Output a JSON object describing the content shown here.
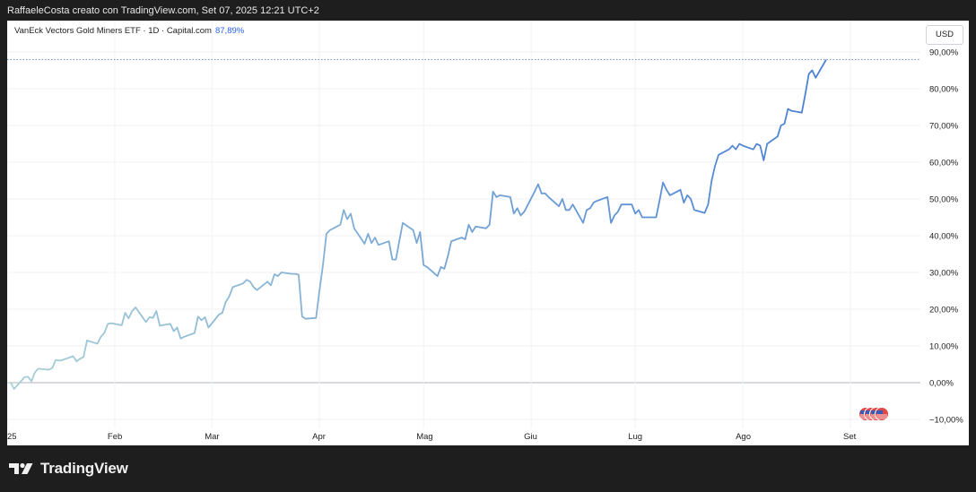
{
  "header": {
    "attribution": "RaffaeleCosta creato con TradingView.com, Set 07, 2025 12:21 UTC+2"
  },
  "legend": {
    "symbol": "VanEck Vectors Gold Miners ETF · 1D · Capital.com",
    "value": "87,89%"
  },
  "currency_button": "USD",
  "brand": {
    "name": "TradingView",
    "icon": "tradingview-logo-icon"
  },
  "colors": {
    "line_start": "#a8cfd6",
    "line_end": "#4a80d4",
    "zero_line": "#b0b3ba",
    "grid": "#f0f2f5"
  },
  "chart_data": {
    "type": "line",
    "title": "",
    "xlabel": "",
    "ylabel": "",
    "y_unit": "percent change",
    "ylim": [
      -10,
      92
    ],
    "grid": true,
    "y_ticks": [
      "90,00%",
      "80,00%",
      "70,00%",
      "60,00%",
      "50,00%",
      "40,00%",
      "30,00%",
      "20,00%",
      "10,00%",
      "0,00%",
      "−10,00%"
    ],
    "y_tick_values": [
      90,
      80,
      70,
      60,
      50,
      40,
      30,
      20,
      10,
      0,
      -10
    ],
    "x_ticks": [
      "25",
      "Feb",
      "Mar",
      "Apr",
      "Mag",
      "Giu",
      "Lug",
      "Ago",
      "Set"
    ],
    "x_tick_dates": [
      "2025-01-01",
      "2025-02-01",
      "2025-03-01",
      "2025-04-01",
      "2025-05-01",
      "2025-06-01",
      "2025-07-01",
      "2025-08-01",
      "2025-09-01"
    ],
    "last_value": 87.89,
    "series": [
      {
        "values": [
          [
            "2025-01-02",
            0.0
          ],
          [
            "2025-01-03",
            -1.7
          ],
          [
            "2025-01-06",
            1.5
          ],
          [
            "2025-01-07",
            1.6
          ],
          [
            "2025-01-08",
            0.4
          ],
          [
            "2025-01-09",
            2.8
          ],
          [
            "2025-01-10",
            3.8
          ],
          [
            "2025-01-13",
            3.5
          ],
          [
            "2025-01-14",
            4.0
          ],
          [
            "2025-01-15",
            6.2
          ],
          [
            "2025-01-16",
            6.0
          ],
          [
            "2025-01-17",
            6.2
          ],
          [
            "2025-01-20",
            7.2
          ],
          [
            "2025-01-21",
            5.8
          ],
          [
            "2025-01-22",
            6.5
          ],
          [
            "2025-01-23",
            7.0
          ],
          [
            "2025-01-24",
            11.5
          ],
          [
            "2025-01-27",
            10.6
          ],
          [
            "2025-01-28",
            12.5
          ],
          [
            "2025-01-29",
            13.5
          ],
          [
            "2025-01-30",
            16.0
          ],
          [
            "2025-01-31",
            16.2
          ],
          [
            "2025-02-03",
            15.6
          ],
          [
            "2025-02-04",
            19.0
          ],
          [
            "2025-02-05",
            17.5
          ],
          [
            "2025-02-06",
            19.5
          ],
          [
            "2025-02-07",
            20.5
          ],
          [
            "2025-02-10",
            16.5
          ],
          [
            "2025-02-11",
            17.8
          ],
          [
            "2025-02-12",
            17.6
          ],
          [
            "2025-02-13",
            19.5
          ],
          [
            "2025-02-14",
            15.5
          ],
          [
            "2025-02-17",
            16.0
          ],
          [
            "2025-02-18",
            14.0
          ],
          [
            "2025-02-19",
            15.0
          ],
          [
            "2025-02-20",
            12.0
          ],
          [
            "2025-02-21",
            12.5
          ],
          [
            "2025-02-24",
            13.5
          ],
          [
            "2025-02-25",
            18.0
          ],
          [
            "2025-02-26",
            17.0
          ],
          [
            "2025-02-27",
            17.8
          ],
          [
            "2025-02-28",
            15.0
          ],
          [
            "2025-03-03",
            18.5
          ],
          [
            "2025-03-04",
            19.0
          ],
          [
            "2025-03-05",
            22.0
          ],
          [
            "2025-03-06",
            23.5
          ],
          [
            "2025-03-07",
            26.0
          ],
          [
            "2025-03-10",
            27.0
          ],
          [
            "2025-03-11",
            28.0
          ],
          [
            "2025-03-12",
            27.5
          ],
          [
            "2025-03-13",
            26.0
          ],
          [
            "2025-03-14",
            25.2
          ],
          [
            "2025-03-17",
            27.5
          ],
          [
            "2025-03-18",
            26.5
          ],
          [
            "2025-03-19",
            29.5
          ],
          [
            "2025-03-20",
            29.0
          ],
          [
            "2025-03-21",
            30.0
          ],
          [
            "2025-03-24",
            29.6
          ],
          [
            "2025-03-25",
            29.6
          ],
          [
            "2025-03-26",
            29.4
          ],
          [
            "2025-03-27",
            18.0
          ],
          [
            "2025-03-28",
            17.4
          ],
          [
            "2025-03-31",
            17.6
          ],
          [
            "2025-04-01",
            25.0
          ],
          [
            "2025-04-02",
            32.0
          ],
          [
            "2025-04-03",
            40.5
          ],
          [
            "2025-04-04",
            41.5
          ],
          [
            "2025-04-07",
            43.0
          ],
          [
            "2025-04-08",
            47.0
          ],
          [
            "2025-04-09",
            44.5
          ],
          [
            "2025-04-10",
            46.0
          ],
          [
            "2025-04-11",
            42.0
          ],
          [
            "2025-04-14",
            37.8
          ],
          [
            "2025-04-15",
            40.5
          ],
          [
            "2025-04-16",
            38.0
          ],
          [
            "2025-04-17",
            39.5
          ],
          [
            "2025-04-18",
            37.5
          ],
          [
            "2025-04-21",
            38.5
          ],
          [
            "2025-04-22",
            33.5
          ],
          [
            "2025-04-23",
            33.5
          ],
          [
            "2025-04-24",
            38.5
          ],
          [
            "2025-04-25",
            43.5
          ],
          [
            "2025-04-28",
            41.5
          ],
          [
            "2025-04-29",
            38.0
          ],
          [
            "2025-04-30",
            41.0
          ],
          [
            "2025-05-01",
            32.0
          ],
          [
            "2025-05-02",
            31.5
          ],
          [
            "2025-05-05",
            29.0
          ],
          [
            "2025-05-06",
            31.5
          ],
          [
            "2025-05-07",
            31.0
          ],
          [
            "2025-05-08",
            34.5
          ],
          [
            "2025-05-09",
            38.5
          ],
          [
            "2025-05-12",
            39.5
          ],
          [
            "2025-05-13",
            39.0
          ],
          [
            "2025-05-14",
            43.0
          ],
          [
            "2025-05-15",
            41.0
          ],
          [
            "2025-05-16",
            42.5
          ],
          [
            "2025-05-19",
            42.0
          ],
          [
            "2025-05-20",
            43.0
          ],
          [
            "2025-05-21",
            52.0
          ],
          [
            "2025-05-22",
            50.5
          ],
          [
            "2025-05-23",
            51.0
          ],
          [
            "2025-05-26",
            50.5
          ],
          [
            "2025-05-27",
            46.0
          ],
          [
            "2025-05-28",
            47.5
          ],
          [
            "2025-05-29",
            45.5
          ],
          [
            "2025-05-30",
            46.5
          ],
          [
            "2025-06-02",
            52.0
          ],
          [
            "2025-06-03",
            54.0
          ],
          [
            "2025-06-04",
            51.5
          ],
          [
            "2025-06-05",
            51.5
          ],
          [
            "2025-06-06",
            50.5
          ],
          [
            "2025-06-09",
            48.0
          ],
          [
            "2025-06-10",
            50.0
          ],
          [
            "2025-06-11",
            47.0
          ],
          [
            "2025-06-12",
            47.0
          ],
          [
            "2025-06-13",
            48.5
          ],
          [
            "2025-06-16",
            43.5
          ],
          [
            "2025-06-17",
            47.0
          ],
          [
            "2025-06-18",
            47.5
          ],
          [
            "2025-06-19",
            49.0
          ],
          [
            "2025-06-20",
            49.5
          ],
          [
            "2025-06-23",
            50.5
          ],
          [
            "2025-06-24",
            43.5
          ],
          [
            "2025-06-25",
            45.5
          ],
          [
            "2025-06-26",
            46.5
          ],
          [
            "2025-06-27",
            48.5
          ],
          [
            "2025-06-30",
            48.5
          ],
          [
            "2025-07-01",
            46.0
          ],
          [
            "2025-07-02",
            47.0
          ],
          [
            "2025-07-03",
            45.0
          ],
          [
            "2025-07-07",
            45.0
          ],
          [
            "2025-07-08",
            49.5
          ],
          [
            "2025-07-09",
            54.5
          ],
          [
            "2025-07-10",
            52.5
          ],
          [
            "2025-07-11",
            51.0
          ],
          [
            "2025-07-14",
            52.5
          ],
          [
            "2025-07-15",
            49.0
          ],
          [
            "2025-07-16",
            51.0
          ],
          [
            "2025-07-17",
            50.0
          ],
          [
            "2025-07-18",
            47.0
          ],
          [
            "2025-07-21",
            46.2
          ],
          [
            "2025-07-22",
            48.5
          ],
          [
            "2025-07-23",
            55.0
          ],
          [
            "2025-07-24",
            59.0
          ],
          [
            "2025-07-25",
            62.0
          ],
          [
            "2025-07-28",
            63.5
          ],
          [
            "2025-07-29",
            64.5
          ],
          [
            "2025-07-30",
            63.5
          ],
          [
            "2025-07-31",
            65.0
          ],
          [
            "2025-08-01",
            64.5
          ],
          [
            "2025-08-04",
            63.5
          ],
          [
            "2025-08-05",
            65.0
          ],
          [
            "2025-08-06",
            64.5
          ],
          [
            "2025-08-07",
            60.5
          ],
          [
            "2025-08-08",
            65.0
          ],
          [
            "2025-08-11",
            67.0
          ],
          [
            "2025-08-12",
            70.0
          ],
          [
            "2025-08-13",
            70.5
          ],
          [
            "2025-08-14",
            74.5
          ],
          [
            "2025-08-15",
            74.0
          ],
          [
            "2025-08-18",
            73.5
          ],
          [
            "2025-08-19",
            78.5
          ],
          [
            "2025-08-20",
            84.0
          ],
          [
            "2025-08-21",
            85.0
          ],
          [
            "2025-08-22",
            83.0
          ],
          [
            "2025-08-25",
            87.89
          ]
        ]
      }
    ],
    "event_badges": [
      "us-flag-icon",
      "us-flag-icon",
      "us-flag-icon",
      "us-flag-icon"
    ]
  }
}
